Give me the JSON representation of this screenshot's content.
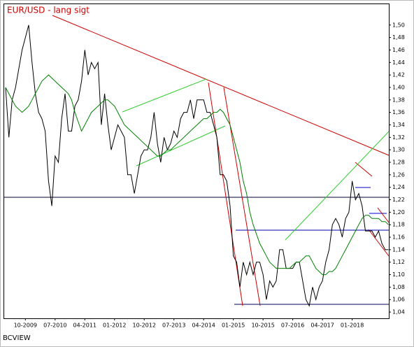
{
  "chart_data": {
    "type": "line",
    "title": "EUR/USD - lang sigt",
    "source": "BCVIEW",
    "x": [
      "04-2009",
      "05-2009",
      "06-2009",
      "07-2009",
      "08-2009",
      "09-2009",
      "10-2009",
      "11-2009",
      "12-2009",
      "01-2010",
      "02-2010",
      "03-2010",
      "04-2010",
      "05-2010",
      "06-2010",
      "07-2010",
      "08-2010",
      "09-2010",
      "10-2010",
      "11-2010",
      "12-2010",
      "01-2011",
      "02-2011",
      "03-2011",
      "04-2011",
      "05-2011",
      "06-2011",
      "07-2011",
      "08-2011",
      "09-2011",
      "10-2011",
      "11-2011",
      "12-2011",
      "01-2012",
      "02-2012",
      "03-2012",
      "04-2012",
      "05-2012",
      "06-2012",
      "07-2012",
      "08-2012",
      "09-2012",
      "10-2012",
      "11-2012",
      "12-2012",
      "01-2013",
      "02-2013",
      "03-2013",
      "04-2013",
      "05-2013",
      "06-2013",
      "07-2013",
      "08-2013",
      "09-2013",
      "10-2013",
      "11-2013",
      "12-2013",
      "01-2014",
      "02-2014",
      "03-2014",
      "04-2014",
      "05-2014",
      "06-2014",
      "07-2014",
      "08-2014",
      "09-2014",
      "10-2014",
      "11-2014",
      "12-2014",
      "01-2015",
      "02-2015",
      "03-2015",
      "04-2015",
      "05-2015",
      "06-2015",
      "07-2015",
      "08-2015",
      "09-2015",
      "10-2015",
      "11-2015",
      "12-2015",
      "01-2016",
      "02-2016",
      "03-2016",
      "04-2016",
      "05-2016",
      "06-2016",
      "07-2016",
      "08-2016",
      "09-2016",
      "10-2016",
      "11-2016",
      "12-2016",
      "01-2017",
      "02-2017",
      "03-2017",
      "04-2017",
      "05-2017",
      "06-2017",
      "07-2017",
      "08-2017",
      "09-2017",
      "10-2017",
      "11-2017",
      "12-2017",
      "01-2018",
      "02-2018",
      "03-2018",
      "04-2018",
      "05-2018",
      "06-2018",
      "07-2018",
      "08-2018",
      "09-2018",
      "10-2018",
      "11-2018",
      "12-2018"
    ],
    "series": [
      {
        "color": "#000000",
        "values": [
          1.4,
          1.32,
          1.38,
          1.4,
          1.43,
          1.46,
          1.48,
          1.5,
          1.44,
          1.39,
          1.36,
          1.35,
          1.33,
          1.25,
          1.21,
          1.29,
          1.28,
          1.35,
          1.39,
          1.33,
          1.33,
          1.37,
          1.38,
          1.41,
          1.46,
          1.42,
          1.44,
          1.43,
          1.44,
          1.34,
          1.39,
          1.34,
          1.3,
          1.32,
          1.34,
          1.33,
          1.32,
          1.26,
          1.26,
          1.23,
          1.26,
          1.29,
          1.3,
          1.3,
          1.32,
          1.36,
          1.31,
          1.28,
          1.32,
          1.3,
          1.31,
          1.33,
          1.32,
          1.35,
          1.36,
          1.36,
          1.38,
          1.35,
          1.38,
          1.38,
          1.38,
          1.36,
          1.36,
          1.34,
          1.32,
          1.26,
          1.26,
          1.25,
          1.21,
          1.13,
          1.12,
          1.08,
          1.12,
          1.1,
          1.12,
          1.1,
          1.12,
          1.12,
          1.1,
          1.06,
          1.09,
          1.08,
          1.09,
          1.14,
          1.14,
          1.11,
          1.11,
          1.11,
          1.12,
          1.12,
          1.09,
          1.06,
          1.05,
          1.08,
          1.06,
          1.08,
          1.09,
          1.12,
          1.14,
          1.18,
          1.19,
          1.18,
          1.16,
          1.19,
          1.2,
          1.25,
          1.22,
          1.23,
          1.21,
          1.17,
          1.17,
          1.17,
          1.16,
          1.17,
          1.15,
          1.14,
          1.14
        ]
      },
      {
        "color": "#008000",
        "values": [
          1.4,
          1.39,
          1.38,
          1.37,
          1.365,
          1.36,
          1.365,
          1.37,
          1.38,
          1.39,
          1.4,
          1.41,
          1.415,
          1.42,
          1.415,
          1.41,
          1.405,
          1.4,
          1.395,
          1.39,
          1.38,
          1.36,
          1.345,
          1.33,
          1.34,
          1.35,
          1.36,
          1.365,
          1.37,
          1.375,
          1.38,
          1.38,
          1.375,
          1.37,
          1.36,
          1.35,
          1.34,
          1.335,
          1.33,
          1.325,
          1.32,
          1.315,
          1.31,
          1.305,
          1.3,
          1.295,
          1.29,
          1.29,
          1.295,
          1.3,
          1.3,
          1.305,
          1.31,
          1.315,
          1.32,
          1.325,
          1.33,
          1.335,
          1.34,
          1.345,
          1.35,
          1.35,
          1.355,
          1.36,
          1.36,
          1.365,
          1.36,
          1.35,
          1.34,
          1.32,
          1.3,
          1.28,
          1.25,
          1.23,
          1.2,
          1.18,
          1.165,
          1.15,
          1.14,
          1.13,
          1.12,
          1.115,
          1.11,
          1.11,
          1.11,
          1.11,
          1.11,
          1.115,
          1.12,
          1.12,
          1.125,
          1.13,
          1.13,
          1.12,
          1.11,
          1.105,
          1.1,
          1.1,
          1.105,
          1.105,
          1.11,
          1.12,
          1.13,
          1.14,
          1.15,
          1.16,
          1.17,
          1.18,
          1.19,
          1.195,
          1.195,
          1.19,
          1.19,
          1.19,
          1.185,
          1.185,
          1.18
        ]
      }
    ],
    "xticks": [
      "10-2009",
      "07-2010",
      "04-2011",
      "01-2012",
      "10-2012",
      "07-2013",
      "04-2014",
      "01-2015",
      "10-2015",
      "07-2016",
      "04-2017",
      "01-2018"
    ],
    "ylim": [
      1.03,
      1.53
    ],
    "yticks": [
      {
        "value": 1.04,
        "label": "1,04"
      },
      {
        "value": 1.06,
        "label": "1,06"
      },
      {
        "value": 1.08,
        "label": "1,08"
      },
      {
        "value": 1.1,
        "label": "1,10"
      },
      {
        "value": 1.12,
        "label": "1,12"
      },
      {
        "value": 1.14,
        "label": "1,14"
      },
      {
        "value": 1.16,
        "label": "1,16"
      },
      {
        "value": 1.18,
        "label": "1,18"
      },
      {
        "value": 1.2,
        "label": "1,20"
      },
      {
        "value": 1.22,
        "label": "1,22"
      },
      {
        "value": 1.24,
        "label": "1,24"
      },
      {
        "value": 1.26,
        "label": "1,26"
      },
      {
        "value": 1.28,
        "label": "1,28"
      },
      {
        "value": 1.3,
        "label": "1,30"
      },
      {
        "value": 1.32,
        "label": "1,32"
      },
      {
        "value": 1.34,
        "label": "1,34"
      },
      {
        "value": 1.36,
        "label": "1,36"
      },
      {
        "value": 1.38,
        "label": "1,38"
      },
      {
        "value": 1.4,
        "label": "1,40"
      },
      {
        "value": 1.42,
        "label": "1,42"
      },
      {
        "value": 1.44,
        "label": "1,44"
      },
      {
        "value": 1.46,
        "label": "1,46"
      },
      {
        "value": 1.48,
        "label": "1,48"
      },
      {
        "value": 1.5,
        "label": "1,50"
      }
    ],
    "y_axis_side": "right"
  }
}
